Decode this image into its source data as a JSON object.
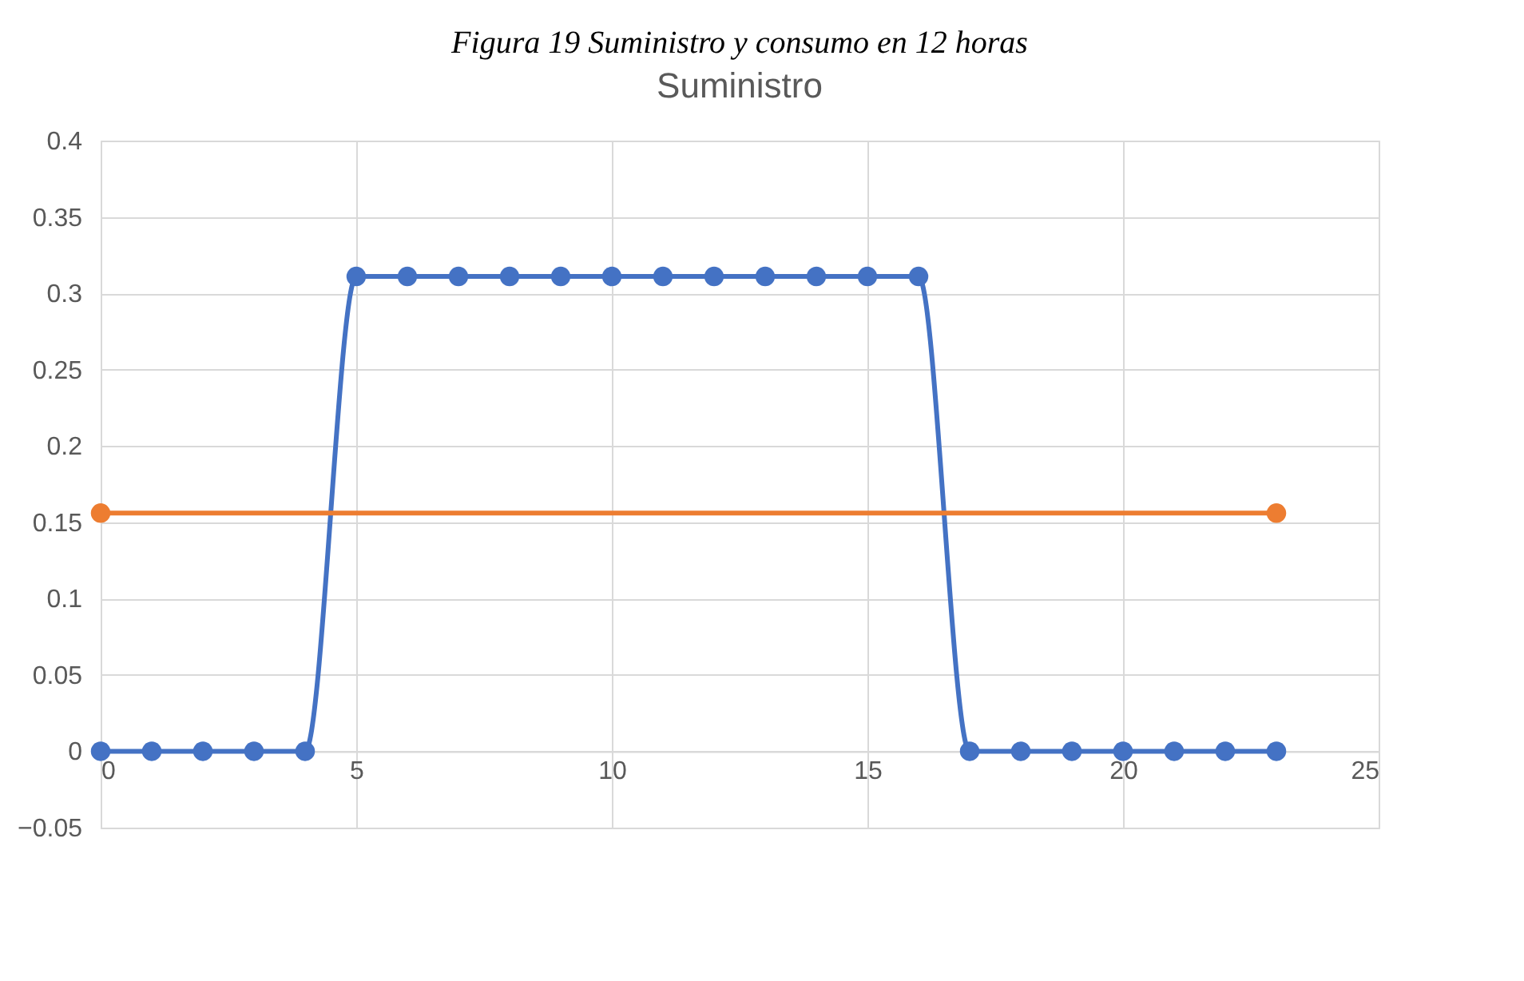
{
  "chart_data": {
    "type": "line",
    "title": "Suministro",
    "annotations": [
      "Figura 19 Suministro y consumo en 12 horas"
    ],
    "series": [
      {
        "color": "#4472c4",
        "x": [
          0,
          1,
          2,
          3,
          4,
          5,
          6,
          7,
          8,
          9,
          10,
          11,
          12,
          13,
          14,
          15,
          16,
          17,
          18,
          19,
          20,
          21,
          22,
          23
        ],
        "values": [
          0,
          0,
          0,
          0,
          0,
          0.311,
          0.311,
          0.311,
          0.311,
          0.311,
          0.311,
          0.311,
          0.311,
          0.311,
          0.311,
          0.311,
          0.311,
          0,
          0,
          0,
          0,
          0,
          0,
          0
        ]
      },
      {
        "color": "#ed7d31",
        "x": [
          0,
          23
        ],
        "values": [
          0.156,
          0.156
        ]
      }
    ],
    "xlim": [
      0,
      25
    ],
    "xticks": [
      0,
      5,
      10,
      15,
      20,
      25
    ],
    "ylim": [
      -0.05,
      0.4
    ],
    "yticks": [
      -0.05,
      0,
      0.05,
      0.1,
      0.15,
      0.2,
      0.25,
      0.3,
      0.35,
      0.4
    ],
    "grid": true,
    "legend": false,
    "marker": "circle",
    "line_style": "solid"
  }
}
